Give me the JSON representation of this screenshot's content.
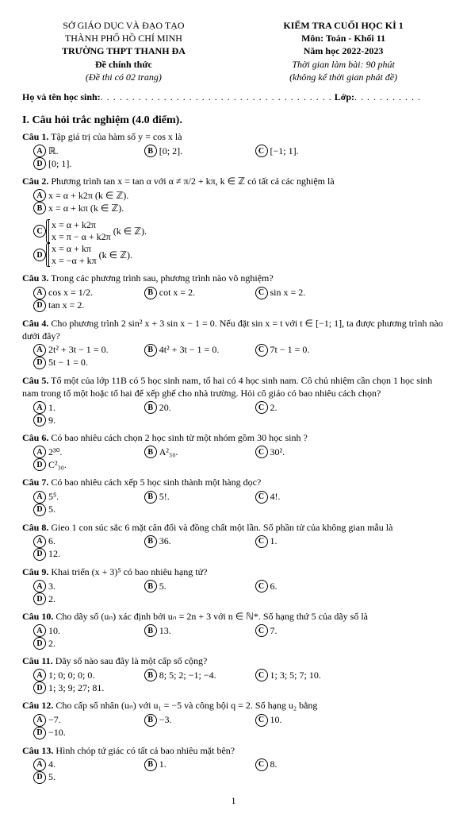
{
  "header": {
    "left": {
      "l1": "SỞ GIÁO DỤC VÀ ĐẠO TẠO",
      "l2": "THÀNH PHỐ HỒ CHÍ MINH",
      "l3": "TRƯỜNG THPT THANH ĐA",
      "l4": "Đề chính thức",
      "l5": "(Đề thi có 02 trang)"
    },
    "right": {
      "l1": "KIỂM TRA CUỐI HỌC KÌ 1",
      "l2": "Môn: Toán - Khối 11",
      "l3": "Năm học 2022-2023",
      "l4": "Thời gian làm bài: 90 phút",
      "l5": "(không kể thời gian phát đề)"
    }
  },
  "nameline": {
    "name_label": "Họ và tên học sinh:",
    "class_label": "Lớp:"
  },
  "section1": "I. Câu hỏi trắc nghiệm (4.0 điểm).",
  "q1": {
    "label": "Câu 1.",
    "text": "Tập giá trị của hàm số y = cos x là",
    "A": "ℝ.",
    "B": "[0; 2].",
    "C": "[−1; 1].",
    "D": "[0; 1]."
  },
  "q2": {
    "label": "Câu 2.",
    "text": "Phương trình tan x = tan α với α ≠ π/2 + kπ,  k ∈ ℤ có tất cả các nghiệm là",
    "A": "x = α + k2π  (k ∈ ℤ).",
    "B": "x = α + kπ  (k ∈ ℤ).",
    "C1": "x = α + k2π",
    "C2": "x = π − α + k2π",
    "Csuf": "(k ∈ ℤ).",
    "D1": "x = α + kπ",
    "D2": "x = −α + kπ",
    "Dsuf": "(k ∈ ℤ)."
  },
  "q3": {
    "label": "Câu 3.",
    "text": "Trong các phương trình sau, phương trình nào vô nghiệm?",
    "A": "cos x = 1/2.",
    "B": "cot x = 2.",
    "C": "sin x = 2.",
    "D": "tan x = 2."
  },
  "q4": {
    "label": "Câu 4.",
    "text": "Cho phương trình 2 sin² x + 3 sin x − 1 = 0. Nếu đặt sin x = t với t ∈ [−1; 1], ta được phương trình nào dưới đây?",
    "A": "2t² + 3t − 1 = 0.",
    "B": "4t² + 3t − 1 = 0.",
    "C": "7t − 1 = 0.",
    "D": "5t − 1 = 0."
  },
  "q5": {
    "label": "Câu 5.",
    "text": "Tổ một của lớp 11B có 5 học sinh nam, tổ hai có 4 học sinh nam. Cô chủ nhiệm cần chọn 1 học sinh nam trong tổ một hoặc tổ hai để xếp ghế cho nhà trường. Hỏi cô giáo có bao nhiêu cách chọn?",
    "A": "1.",
    "B": "20.",
    "C": "2.",
    "D": "9."
  },
  "q6": {
    "label": "Câu 6.",
    "text": "Có bao nhiêu cách chọn 2 học sinh từ một nhóm gồm 30 học sinh ?",
    "A": "2³⁰.",
    "B": "A²₃₀.",
    "C": "30².",
    "D": "C²₃₀."
  },
  "q7": {
    "label": "Câu 7.",
    "text": "Có bao nhiêu cách xếp 5 học sinh thành một hàng dọc?",
    "A": "5⁵.",
    "B": "5!.",
    "C": "4!.",
    "D": "5."
  },
  "q8": {
    "label": "Câu 8.",
    "text": "Gieo 1 con súc sắc 6 mặt cân đối và đồng chất một lần. Số phần tử của không gian mẫu là",
    "A": "6.",
    "B": "36.",
    "C": "1.",
    "D": "12."
  },
  "q9": {
    "label": "Câu 9.",
    "text": "Khai triển (x + 3)⁵ có bao nhiêu hạng tử?",
    "A": "3.",
    "B": "5.",
    "C": "6.",
    "D": "2."
  },
  "q10": {
    "label": "Câu 10.",
    "text": "Cho dãy số (uₙ) xác định bởi uₙ = 2n + 3 với n ∈ ℕ*. Số hạng thứ 5 của dãy số là",
    "A": "10.",
    "B": "13.",
    "C": "7.",
    "D": "2."
  },
  "q11": {
    "label": "Câu 11.",
    "text": "Dãy số nào sau đây là một cấp số cộng?",
    "A": "1; 0; 0; 0; 0.",
    "B": "8; 5; 2; −1; −4.",
    "C": "1; 3; 5; 7; 10.",
    "D": "1; 3; 9; 27; 81."
  },
  "q12": {
    "label": "Câu 12.",
    "text": "Cho cấp số nhân (uₙ) với u₁ = −5 và công bội q = 2. Số hạng u₂ bằng",
    "A": "−7.",
    "B": "−3.",
    "C": "10.",
    "D": "−10."
  },
  "q13": {
    "label": "Câu 13.",
    "text": "Hình chóp tứ giác có tất cả bao nhiêu mặt bên?",
    "A": "4.",
    "B": "1.",
    "C": "8.",
    "D": "5."
  },
  "pageno": "1"
}
